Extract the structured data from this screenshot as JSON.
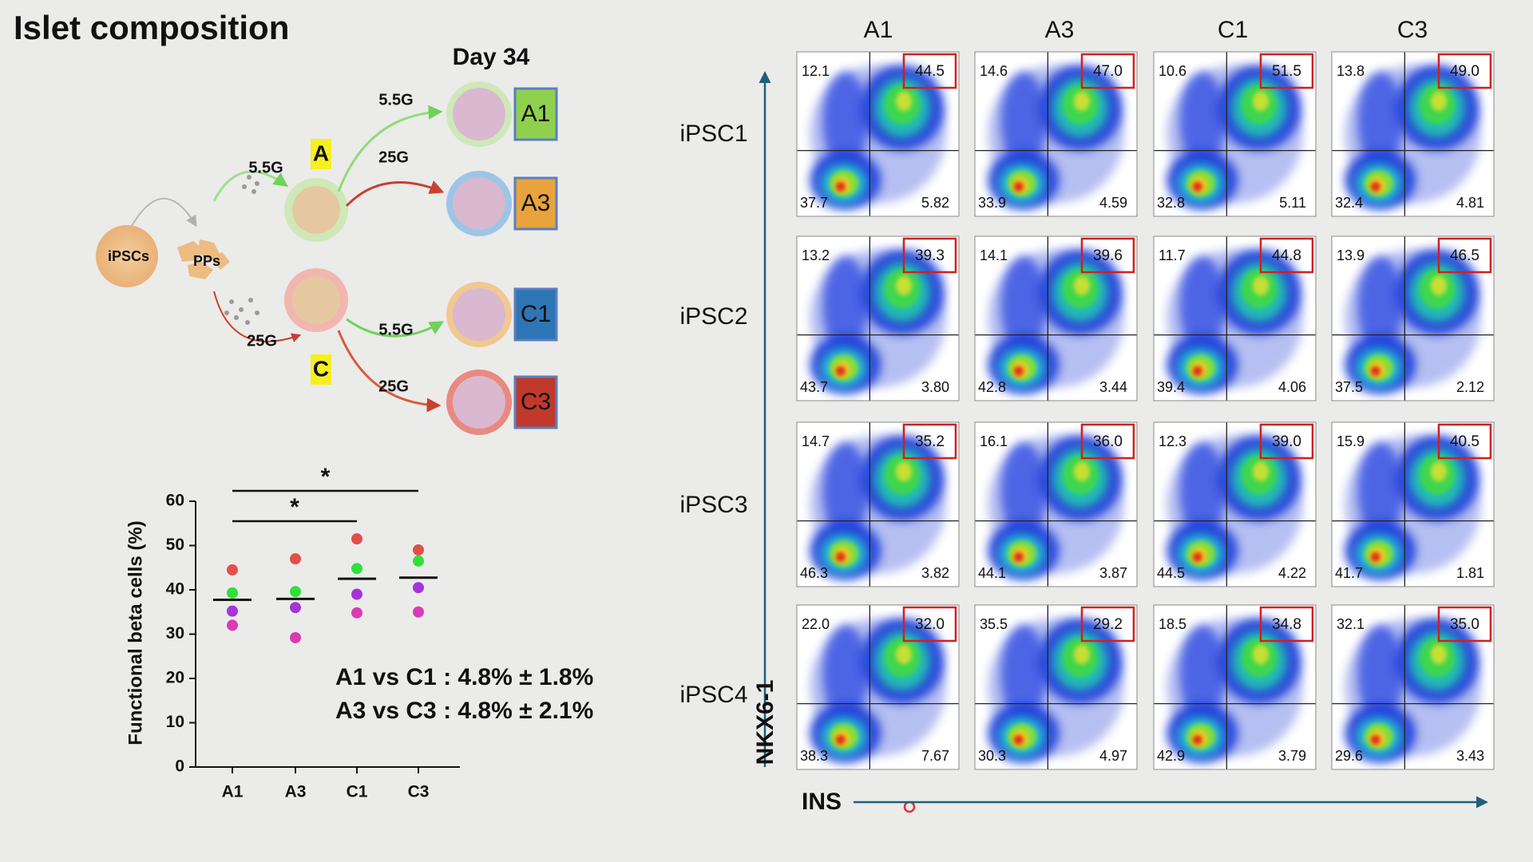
{
  "title": "Islet composition",
  "diagram": {
    "day": "Day 34",
    "source": "iPSCs",
    "progenitor": "PPs",
    "groups": [
      "A",
      "C"
    ],
    "edges": [
      "5.5G",
      "25G",
      "5.5G",
      "25G",
      "5.5G",
      "25G"
    ],
    "outputs": [
      "A1",
      "A3",
      "C1",
      "C3"
    ]
  },
  "chart_data": {
    "type": "strip",
    "y_label": "Functional beta cells (%)",
    "categories": [
      "A1",
      "A3",
      "C1",
      "C3"
    ],
    "series": [
      {
        "color": "#e0504c",
        "values": [
          44.5,
          47.0,
          51.5,
          49.0
        ]
      },
      {
        "color": "#2fe03a",
        "values": [
          39.3,
          39.6,
          44.8,
          46.5
        ]
      },
      {
        "color": "#a535d6",
        "values": [
          35.2,
          36.0,
          39.0,
          40.5
        ]
      },
      {
        "color": "#d83bb4",
        "values": [
          32.0,
          29.2,
          34.8,
          35.0
        ]
      }
    ],
    "means": [
      37.75,
      37.95,
      42.5,
      42.75
    ],
    "ylim": [
      0,
      60
    ],
    "yticks": [
      0,
      10,
      20,
      30,
      40,
      50,
      60
    ],
    "significance": [
      {
        "from": "A1",
        "to": "C1",
        "label": "*"
      },
      {
        "from": "A1",
        "to": "C3",
        "label": "*"
      }
    ],
    "annotations": [
      "A1 vs C1 : 4.8% ± 1.8%",
      "A3 vs C3 : 4.8% ± 2.1%"
    ]
  },
  "flow": {
    "columns": [
      "A1",
      "A3",
      "C1",
      "C3"
    ],
    "rows": [
      "iPSC1",
      "iPSC2",
      "iPSC3",
      "iPSC4"
    ],
    "x_label": "INS",
    "y_label": "NKX6-1",
    "quadrants": [
      [
        [
          "12.1",
          "44.5",
          "37.7",
          "5.82"
        ],
        [
          "14.6",
          "47.0",
          "33.9",
          "4.59"
        ],
        [
          "10.6",
          "51.5",
          "32.8",
          "5.11"
        ],
        [
          "13.8",
          "49.0",
          "32.4",
          "4.81"
        ]
      ],
      [
        [
          "13.2",
          "39.3",
          "43.7",
          "3.80"
        ],
        [
          "14.1",
          "39.6",
          "42.8",
          "3.44"
        ],
        [
          "11.7",
          "44.8",
          "39.4",
          "4.06"
        ],
        [
          "13.9",
          "46.5",
          "37.5",
          "2.12"
        ]
      ],
      [
        [
          "14.7",
          "35.2",
          "46.3",
          "3.82"
        ],
        [
          "16.1",
          "36.0",
          "44.1",
          "3.87"
        ],
        [
          "12.3",
          "39.0",
          "44.5",
          "4.22"
        ],
        [
          "15.9",
          "40.5",
          "41.7",
          "1.81"
        ]
      ],
      [
        [
          "22.0",
          "32.0",
          "38.3",
          "7.67"
        ],
        [
          "35.5",
          "29.2",
          "30.3",
          "4.97"
        ],
        [
          "18.5",
          "34.8",
          "42.9",
          "3.79"
        ],
        [
          "32.1",
          "35.0",
          "29.6",
          "3.43"
        ]
      ]
    ]
  }
}
